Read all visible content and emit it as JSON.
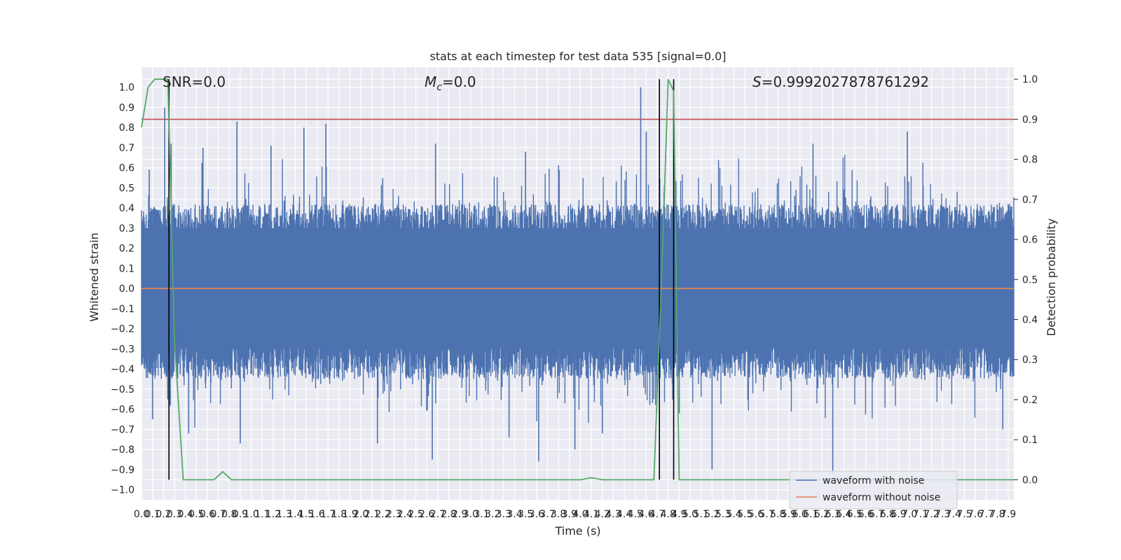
{
  "chart_data": {
    "type": "line",
    "title": "stats at each timestep for test data 535 [signal=0.0]",
    "xlabel": "Time (s)",
    "ylabel": "Whitened strain",
    "ylabel_right": "Detection probability",
    "xlim": [
      0.0,
      7.95
    ],
    "ylim": [
      -1.05,
      1.1
    ],
    "ylim_right": [
      -0.05,
      1.03
    ],
    "yticks": [
      "−1.0",
      "−0.9",
      "−0.8",
      "−0.7",
      "−0.6",
      "−0.5",
      "−0.4",
      "−0.3",
      "−0.2",
      "−0.1",
      "0.0",
      "0.1",
      "0.2",
      "0.3",
      "0.4",
      "0.5",
      "0.6",
      "0.7",
      "0.8",
      "0.9",
      "1.0"
    ],
    "yticks_right": [
      "0.0",
      "0.1",
      "0.2",
      "0.3",
      "0.4",
      "0.5",
      "0.6",
      "0.7",
      "0.8",
      "0.9",
      "1.0"
    ],
    "xticks": [
      "0.0",
      "0.1",
      "0.2",
      "0.3",
      "0.4",
      "0.5",
      "0.6",
      "0.7",
      "0.8",
      "0.9",
      "1.0",
      "1.1",
      "1.2",
      "1.3",
      "1.4",
      "1.5",
      "1.6",
      "1.7",
      "1.8",
      "1.9",
      "2.0",
      "2.1",
      "2.2",
      "2.3",
      "2.4",
      "2.5",
      "2.6",
      "2.7",
      "2.8",
      "2.9",
      "3.0",
      "3.1",
      "3.2",
      "3.3",
      "3.4",
      "3.5",
      "3.6",
      "3.7",
      "3.8",
      "3.9",
      "4.0",
      "4.1",
      "4.2",
      "4.3",
      "4.4",
      "4.5",
      "4.6",
      "4.7",
      "4.8",
      "4.9",
      "5.0",
      "5.1",
      "5.2",
      "5.3",
      "5.4",
      "5.5",
      "5.6",
      "5.7",
      "5.8",
      "5.9",
      "6.0",
      "6.1",
      "6.2",
      "6.3",
      "6.4",
      "6.5",
      "6.6",
      "6.7",
      "6.8",
      "6.9",
      "7.0",
      "7.1",
      "7.2",
      "7.3",
      "7.4",
      "7.5",
      "7.6",
      "7.7",
      "7.8",
      "7.9"
    ],
    "grid": true,
    "annotations": {
      "snr": "SNR=0.0",
      "mc_symbol": "M",
      "mc_sub": "c",
      "mc_value": "=0.0",
      "s_symbol": "S",
      "s_value": "=0.9992027878761292"
    },
    "threshold_right": 0.9,
    "vlines_x": [
      0.25,
      4.72,
      4.85
    ],
    "series": [
      {
        "name": "waveform with noise",
        "color": "#4c72b0",
        "description_note": "dense whitened noise, mostly within ±0.45 with spikes",
        "envelope": {
          "typical_max": 0.42,
          "typical_min": -0.45,
          "peak_max": 1.0,
          "peak_min": -0.9
        },
        "spikes": [
          [
            0.07,
            0.59
          ],
          [
            0.1,
            -0.65
          ],
          [
            0.21,
            0.9
          ],
          [
            0.27,
            0.72
          ],
          [
            0.43,
            -0.72
          ],
          [
            0.56,
            0.7
          ],
          [
            0.87,
            0.83
          ],
          [
            0.9,
            -0.77
          ],
          [
            1.18,
            0.71
          ],
          [
            1.48,
            0.8
          ],
          [
            1.68,
            0.82
          ],
          [
            2.15,
            -0.77
          ],
          [
            2.65,
            -0.85
          ],
          [
            2.68,
            0.72
          ],
          [
            3.35,
            -0.74
          ],
          [
            3.5,
            0.68
          ],
          [
            3.62,
            -0.86
          ],
          [
            3.95,
            -0.8
          ],
          [
            4.2,
            -0.72
          ],
          [
            4.55,
            1.0
          ],
          [
            4.6,
            0.78
          ],
          [
            5.2,
            -0.9
          ],
          [
            6.12,
            0.72
          ],
          [
            6.3,
            -0.92
          ],
          [
            6.98,
            0.78
          ],
          [
            7.85,
            -0.7
          ]
        ]
      },
      {
        "name": "waveform without noise",
        "color": "#dd8452",
        "values_constant": 0.0
      },
      {
        "name": "Detection probability",
        "color": "#55a868",
        "axis": "right",
        "x": [
          0.0,
          0.06,
          0.12,
          0.24,
          0.3,
          0.38,
          0.66,
          0.74,
          0.82,
          4.0,
          4.1,
          4.2,
          4.67,
          4.74,
          4.8,
          4.85,
          4.9,
          7.95
        ],
        "values": [
          0.88,
          0.98,
          1.0,
          1.0,
          0.35,
          0.0,
          0.0,
          0.02,
          0.0,
          0.0,
          0.005,
          0.0,
          0.0,
          0.5,
          1.0,
          0.97,
          0.0,
          0.0
        ]
      }
    ],
    "legend": {
      "placement": "lower-right",
      "entries": [
        {
          "name": "waveform with noise",
          "color": "#4c72b0"
        },
        {
          "name": "waveform without noise",
          "color": "#dd8452"
        }
      ]
    },
    "colors": {
      "background": "#eaeaf2",
      "grid": "#ffffff",
      "threshold": "#c44e52",
      "vline": "#000000"
    }
  }
}
